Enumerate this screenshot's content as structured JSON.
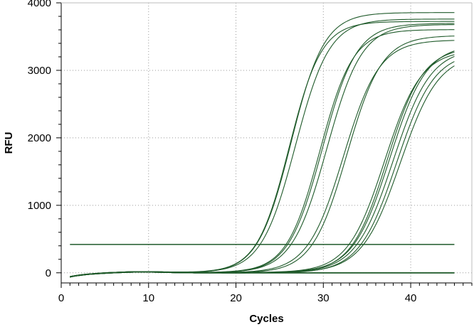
{
  "chart_data": {
    "type": "line",
    "title": "",
    "xlabel": "Cycles",
    "ylabel": "RFU",
    "xlim": [
      0,
      47
    ],
    "ylim": [
      -150,
      4000
    ],
    "xticks": [
      0,
      10,
      20,
      30,
      40
    ],
    "yticks": [
      0,
      1000,
      2000,
      3000,
      4000
    ],
    "grid": "dotted",
    "legend": "none",
    "line_color": "#1f5a2a",
    "threshold": {
      "value": 420,
      "x_range": [
        1,
        45
      ]
    },
    "x_range": [
      1,
      45
    ],
    "series": [
      {
        "plateau": 3860,
        "midpoint": 26.3,
        "slope": 1.9
      },
      {
        "plateau": 3760,
        "midpoint": 26.8,
        "slope": 1.95
      },
      {
        "plateau": 3720,
        "midpoint": 26.1,
        "slope": 1.85
      },
      {
        "plateau": 3700,
        "midpoint": 29.9,
        "slope": 1.95
      },
      {
        "plateau": 3680,
        "midpoint": 30.4,
        "slope": 2.0
      },
      {
        "plateau": 3600,
        "midpoint": 29.6,
        "slope": 1.9
      },
      {
        "plateau": 3520,
        "midpoint": 32.7,
        "slope": 2.0
      },
      {
        "plateau": 3450,
        "midpoint": 32.3,
        "slope": 2.05
      },
      {
        "plateau": 3380,
        "midpoint": 37.6,
        "slope": 2.1
      },
      {
        "plateau": 3350,
        "midpoint": 37.3,
        "slope": 2.05
      },
      {
        "plateau": 3330,
        "midpoint": 38.0,
        "slope": 2.15
      },
      {
        "plateau": 3300,
        "midpoint": 37.0,
        "slope": 2.1
      },
      {
        "plateau": 3280,
        "midpoint": 38.4,
        "slope": 2.15
      },
      {
        "plateau": 3250,
        "midpoint": 38.8,
        "slope": 2.2
      },
      {
        "plateau": 0,
        "midpoint": 40.0,
        "slope": 2.0
      },
      {
        "plateau": 0,
        "midpoint": 40.0,
        "slope": 2.0
      }
    ]
  }
}
